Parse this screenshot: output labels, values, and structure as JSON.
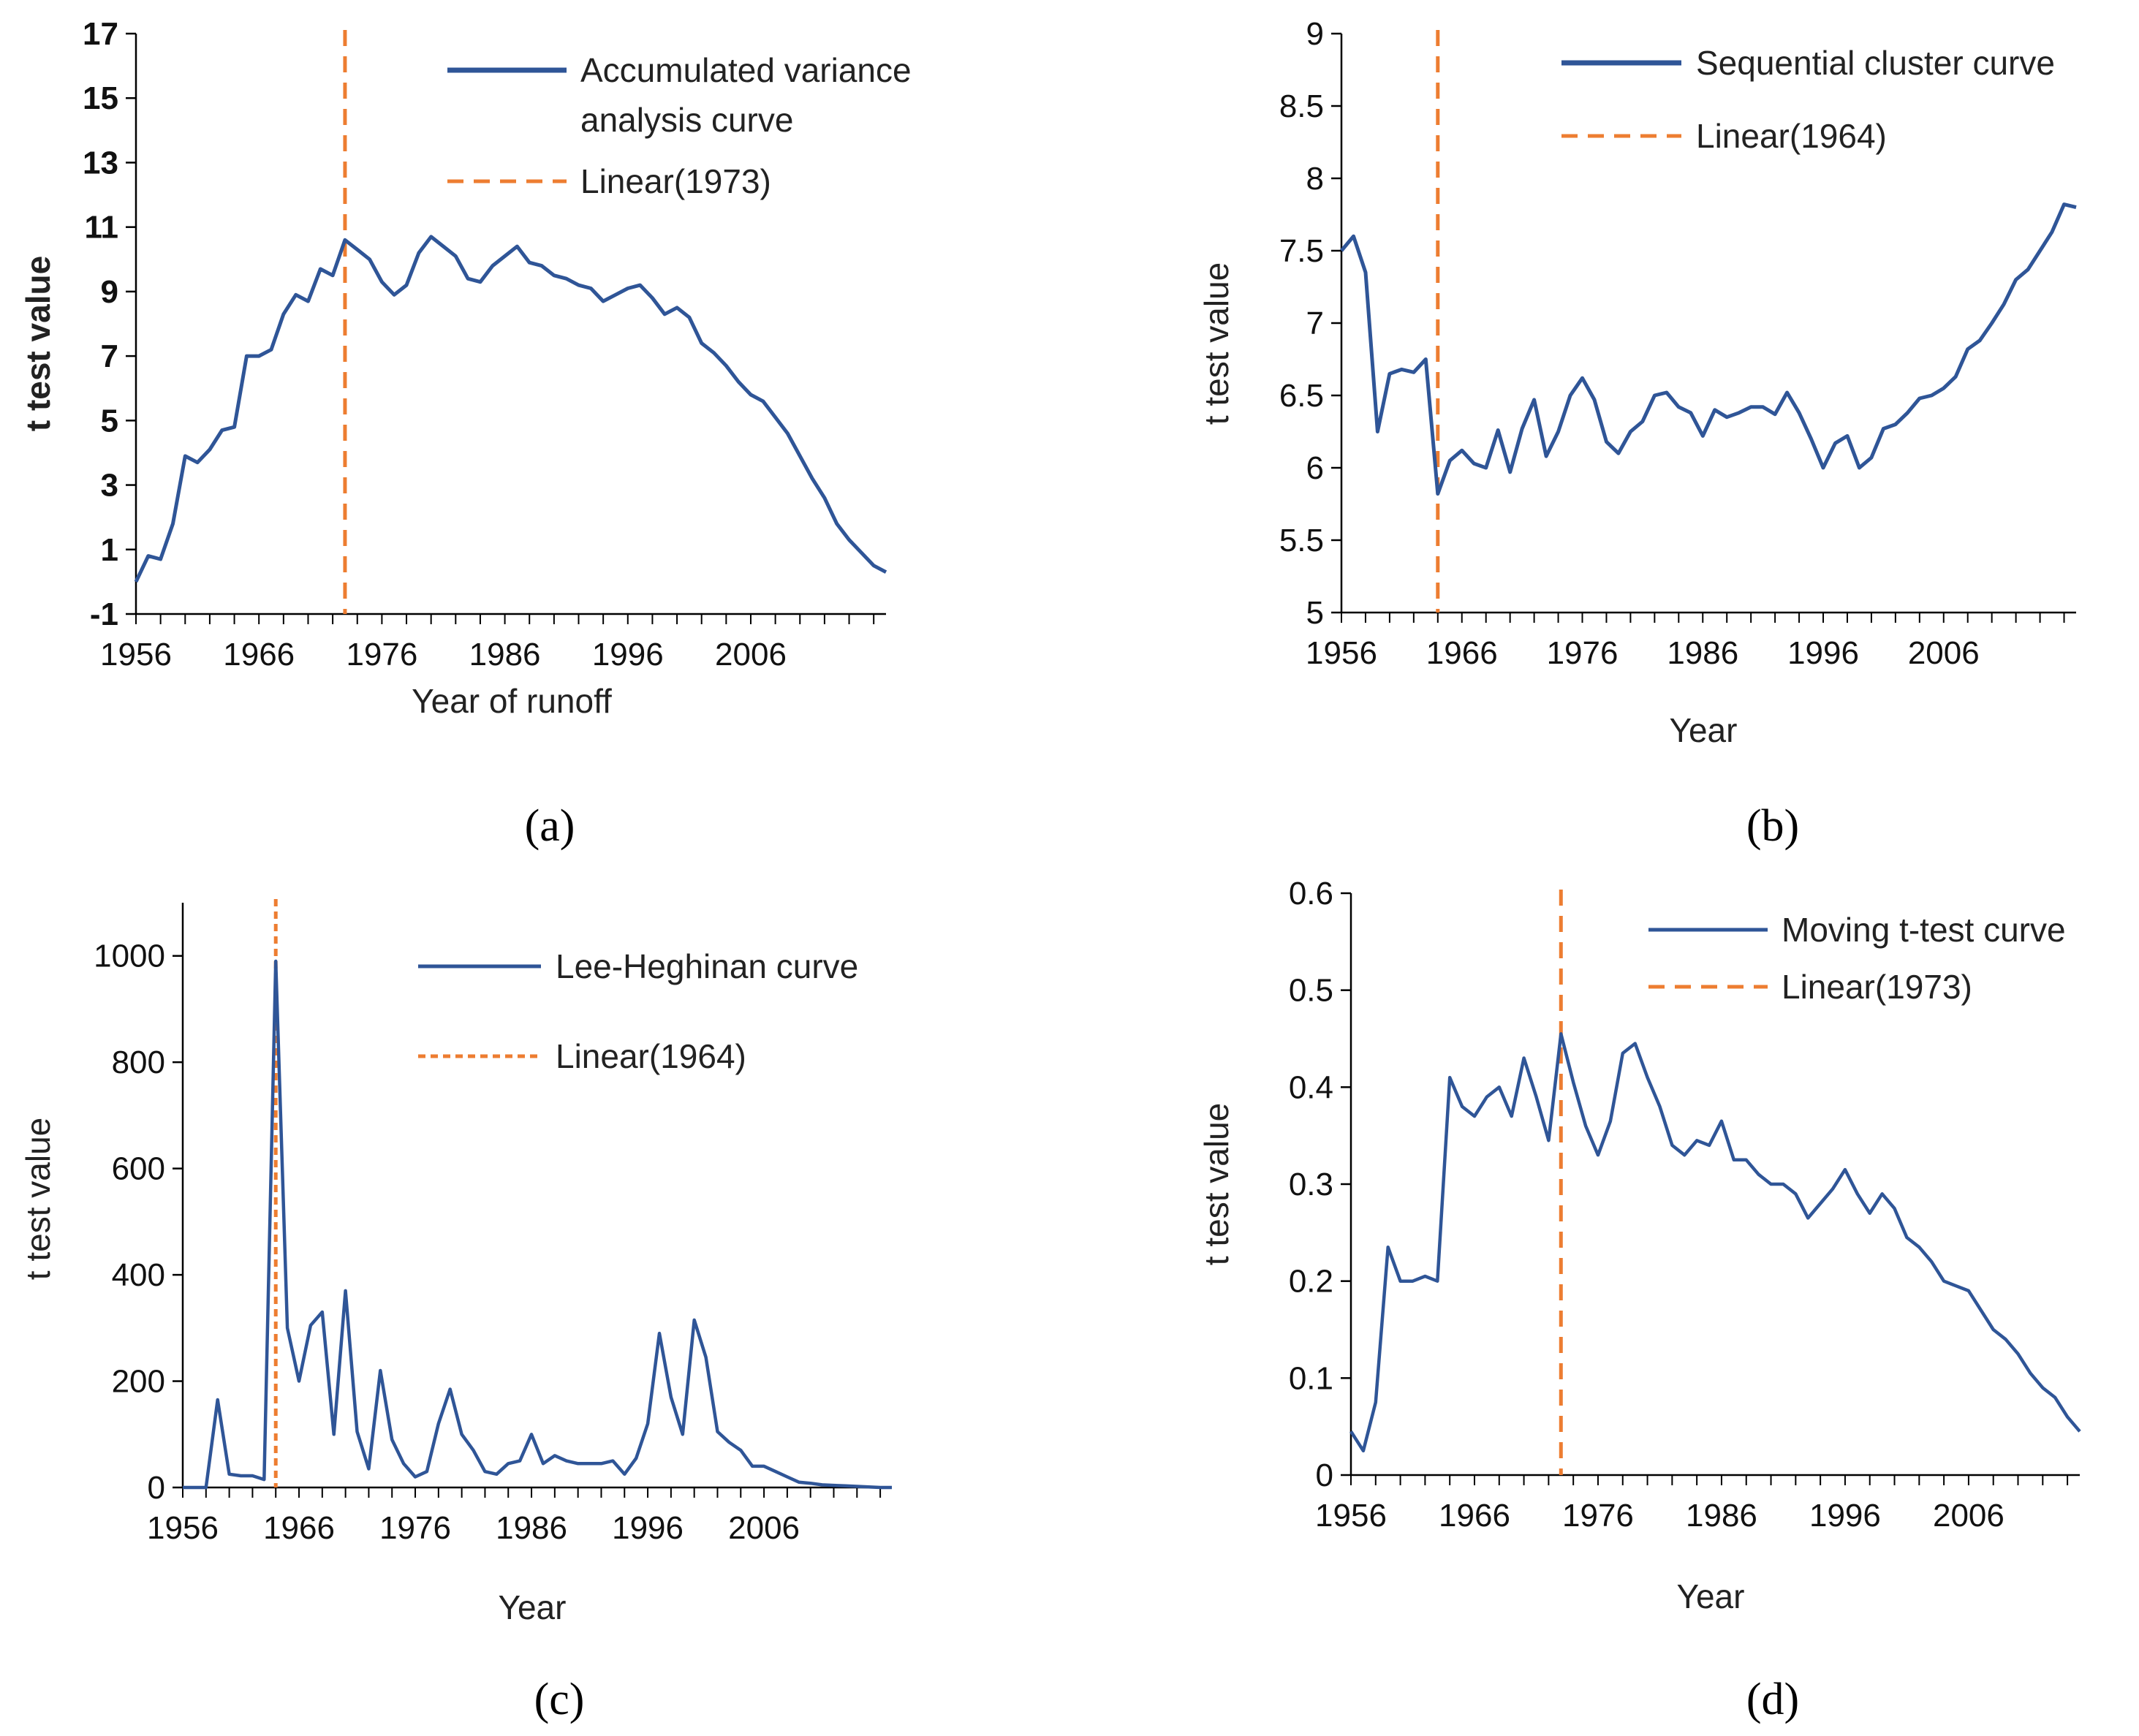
{
  "figure": {
    "panel_labels": [
      "(a)",
      "(b)",
      "(c)",
      "(d)"
    ],
    "colors": {
      "curve": "#2f5597",
      "change_point": "#ed7d31",
      "axis": "#000000"
    }
  },
  "chart_data": [
    {
      "panel": "a",
      "type": "line",
      "title": "",
      "xlabel": "Year of runoff",
      "ylabel": "t test value",
      "xlim": [
        1956,
        2017
      ],
      "ylim": [
        -1,
        17
      ],
      "x_ticks": [
        1956,
        1966,
        1976,
        1986,
        1996,
        2006
      ],
      "y_ticks": [
        -1,
        1,
        3,
        5,
        7,
        9,
        11,
        13,
        15,
        17
      ],
      "legend": [
        "Accumulated variance analysis curve",
        "Linear(1973)"
      ],
      "change_point": 1973,
      "series": [
        {
          "name": "Accumulated variance analysis curve",
          "x": [
            1956,
            1957,
            1958,
            1959,
            1960,
            1961,
            1962,
            1963,
            1964,
            1965,
            1966,
            1967,
            1968,
            1969,
            1970,
            1971,
            1972,
            1973,
            1974,
            1975,
            1976,
            1977,
            1978,
            1979,
            1980,
            1981,
            1982,
            1983,
            1984,
            1985,
            1986,
            1987,
            1988,
            1989,
            1990,
            1991,
            1992,
            1993,
            1994,
            1995,
            1996,
            1997,
            1998,
            1999,
            2000,
            2001,
            2002,
            2003,
            2004,
            2005,
            2006,
            2007,
            2008,
            2009,
            2010,
            2011,
            2012,
            2013,
            2014,
            2015,
            2016,
            2017
          ],
          "values": [
            0,
            0.8,
            0.7,
            1.8,
            3.9,
            3.7,
            4.1,
            4.7,
            4.8,
            7.0,
            7.0,
            7.2,
            8.3,
            8.9,
            8.7,
            9.7,
            9.5,
            10.6,
            10.3,
            10.0,
            9.3,
            8.9,
            9.2,
            10.2,
            10.7,
            10.4,
            10.1,
            9.4,
            9.3,
            9.8,
            10.1,
            10.4,
            9.9,
            9.8,
            9.5,
            9.4,
            9.2,
            9.1,
            8.7,
            8.9,
            9.1,
            9.2,
            8.8,
            8.3,
            8.5,
            8.2,
            7.4,
            7.1,
            6.7,
            6.2,
            5.8,
            5.6,
            5.1,
            4.6,
            3.9,
            3.2,
            2.6,
            1.8,
            1.3,
            0.9,
            0.5,
            0.3
          ]
        }
      ]
    },
    {
      "panel": "b",
      "type": "line",
      "title": "",
      "xlabel": "Year",
      "ylabel": "t test value",
      "xlim": [
        1956,
        2017
      ],
      "ylim": [
        5,
        9
      ],
      "x_ticks": [
        1956,
        1966,
        1976,
        1986,
        1996,
        2006
      ],
      "y_ticks": [
        "5",
        "5.5",
        "6",
        "6.5",
        "7",
        "7.5",
        "8",
        "8.5",
        "9"
      ],
      "legend": [
        "Sequential cluster curve",
        "Linear(1964)"
      ],
      "change_point": 1964,
      "series": [
        {
          "name": "Sequential cluster curve",
          "x": [
            1956,
            1957,
            1958,
            1959,
            1960,
            1961,
            1962,
            1963,
            1964,
            1965,
            1966,
            1967,
            1968,
            1969,
            1970,
            1971,
            1972,
            1973,
            1974,
            1975,
            1976,
            1977,
            1978,
            1979,
            1980,
            1981,
            1982,
            1983,
            1984,
            1985,
            1986,
            1987,
            1988,
            1989,
            1990,
            1991,
            1992,
            1993,
            1994,
            1995,
            1996,
            1997,
            1998,
            1999,
            2000,
            2001,
            2002,
            2003,
            2004,
            2005,
            2006,
            2007,
            2008,
            2009,
            2010,
            2011,
            2012,
            2013,
            2014,
            2015,
            2016,
            2017
          ],
          "values": [
            7.5,
            7.6,
            7.35,
            6.25,
            6.65,
            6.68,
            6.66,
            6.75,
            5.82,
            6.05,
            6.12,
            6.03,
            6.0,
            6.26,
            5.97,
            6.27,
            6.47,
            6.08,
            6.25,
            6.5,
            6.62,
            6.47,
            6.18,
            6.1,
            6.25,
            6.32,
            6.5,
            6.52,
            6.42,
            6.38,
            6.22,
            6.4,
            6.35,
            6.38,
            6.42,
            6.42,
            6.37,
            6.52,
            6.38,
            6.2,
            6.0,
            6.17,
            6.22,
            6.0,
            6.07,
            6.27,
            6.3,
            6.38,
            6.48,
            6.5,
            6.55,
            6.63,
            6.82,
            6.88,
            7.0,
            7.13,
            7.3,
            7.37,
            7.5,
            7.63,
            7.82,
            7.8
          ]
        }
      ]
    },
    {
      "panel": "c",
      "type": "line",
      "title": "",
      "xlabel": "Year",
      "ylabel": "t test value",
      "xlim": [
        1956,
        2017
      ],
      "ylim": [
        0,
        1100
      ],
      "x_ticks": [
        1956,
        1966,
        1976,
        1986,
        1996,
        2006
      ],
      "y_ticks": [
        0,
        200,
        400,
        600,
        800,
        1000
      ],
      "legend": [
        "Lee-Heghinan curve",
        "Linear(1964)"
      ],
      "change_point": 1964,
      "series": [
        {
          "name": "Lee-Heghinan curve",
          "x": [
            1956,
            1957,
            1958,
            1959,
            1960,
            1961,
            1962,
            1963,
            1964,
            1965,
            1966,
            1967,
            1968,
            1969,
            1970,
            1971,
            1972,
            1973,
            1974,
            1975,
            1976,
            1977,
            1978,
            1979,
            1980,
            1981,
            1982,
            1983,
            1984,
            1985,
            1986,
            1987,
            1988,
            1989,
            1990,
            1991,
            1992,
            1993,
            1994,
            1995,
            1996,
            1997,
            1998,
            1999,
            2000,
            2001,
            2002,
            2003,
            2004,
            2005,
            2006,
            2007,
            2008,
            2009,
            2010,
            2011,
            2012,
            2013,
            2014,
            2015,
            2016,
            2017
          ],
          "values": [
            0,
            0,
            0,
            165,
            25,
            22,
            22,
            15,
            990,
            300,
            200,
            305,
            330,
            100,
            370,
            105,
            35,
            220,
            90,
            45,
            20,
            30,
            120,
            185,
            100,
            70,
            30,
            25,
            45,
            50,
            100,
            45,
            60,
            50,
            45,
            45,
            45,
            50,
            25,
            55,
            120,
            290,
            170,
            100,
            315,
            245,
            105,
            85,
            70,
            40,
            40,
            30,
            20,
            10,
            8,
            5,
            4,
            3,
            2,
            1,
            0,
            0
          ]
        }
      ]
    },
    {
      "panel": "d",
      "type": "line",
      "title": "",
      "xlabel": "Year",
      "ylabel": "t test value",
      "xlim": [
        1956,
        2015
      ],
      "ylim": [
        0,
        0.6
      ],
      "x_ticks": [
        1956,
        1966,
        1976,
        1986,
        1996,
        2006
      ],
      "y_ticks": [
        "0",
        "0.1",
        "0.2",
        "0.3",
        "0.4",
        "0.5",
        "0.6"
      ],
      "legend": [
        "Moving t-test curve",
        "Linear(1973)"
      ],
      "change_point": 1973,
      "series": [
        {
          "name": "Moving t-test curve",
          "x": [
            1956,
            1957,
            1958,
            1959,
            1960,
            1961,
            1962,
            1963,
            1964,
            1965,
            1966,
            1967,
            1968,
            1969,
            1970,
            1971,
            1972,
            1973,
            1974,
            1975,
            1976,
            1977,
            1978,
            1979,
            1980,
            1981,
            1982,
            1983,
            1984,
            1985,
            1986,
            1987,
            1988,
            1989,
            1990,
            1991,
            1992,
            1993,
            1994,
            1995,
            1996,
            1997,
            1998,
            1999,
            2000,
            2001,
            2002,
            2003,
            2004,
            2005,
            2006,
            2007,
            2008,
            2009,
            2010,
            2011,
            2012,
            2013,
            2014,
            2015
          ],
          "values": [
            0.045,
            0.025,
            0.075,
            0.235,
            0.2,
            0.2,
            0.205,
            0.2,
            0.41,
            0.38,
            0.37,
            0.39,
            0.4,
            0.37,
            0.43,
            0.39,
            0.345,
            0.455,
            0.405,
            0.36,
            0.33,
            0.365,
            0.435,
            0.445,
            0.41,
            0.38,
            0.34,
            0.33,
            0.345,
            0.34,
            0.365,
            0.325,
            0.325,
            0.31,
            0.3,
            0.3,
            0.29,
            0.265,
            0.28,
            0.295,
            0.315,
            0.29,
            0.27,
            0.29,
            0.275,
            0.245,
            0.235,
            0.22,
            0.2,
            0.195,
            0.19,
            0.17,
            0.15,
            0.14,
            0.125,
            0.105,
            0.09,
            0.08,
            0.06,
            0.045
          ]
        }
      ]
    }
  ]
}
